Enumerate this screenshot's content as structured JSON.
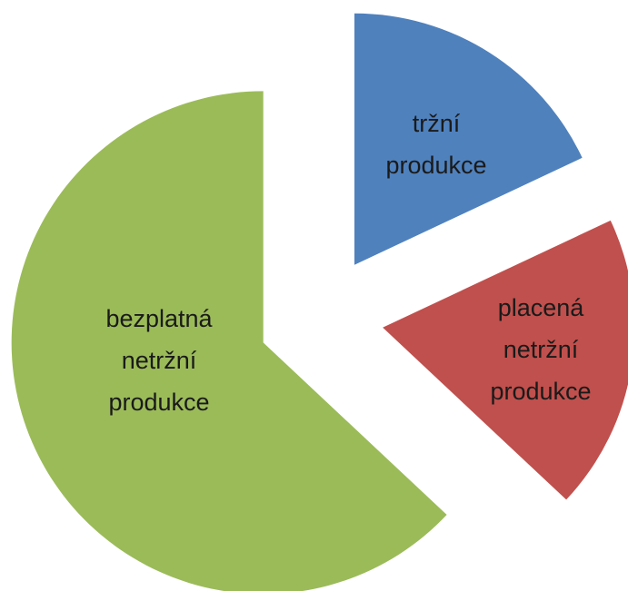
{
  "chart_data": {
    "type": "pie",
    "categories": [
      "tržní produkce",
      "placená netržní produkce",
      "bezplatná netržní produkce"
    ],
    "values": [
      18,
      19,
      63
    ],
    "colors": [
      "#4f81bd",
      "#c0504d",
      "#9bbb59"
    ]
  }
}
